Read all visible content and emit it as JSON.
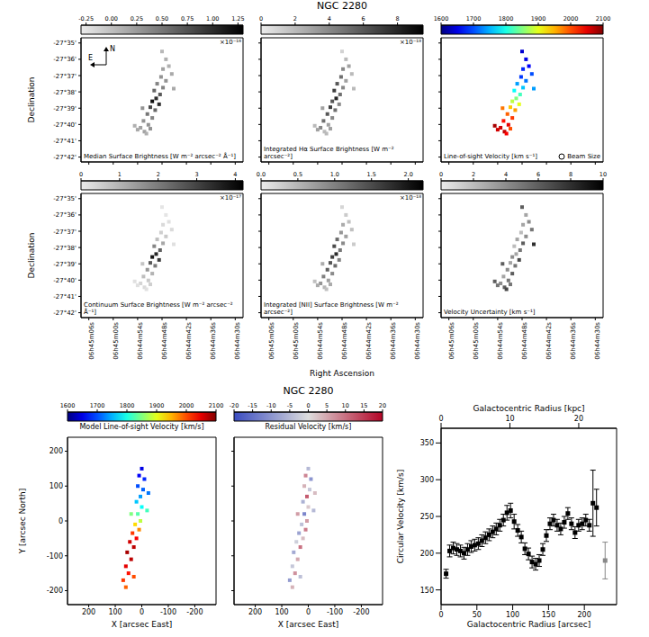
{
  "chart_data": [
    {
      "type": "map_grid",
      "title": "NGC 2280",
      "xlabel": "Right Ascension",
      "ylabel": "Declination",
      "xlim": [
        101.283,
        101.117
      ],
      "xticks": [
        {
          "value": 101.275,
          "label": "06h45m06s"
        },
        {
          "value": 101.25,
          "label": "06h45m00s"
        },
        {
          "value": 101.225,
          "label": "06h44m54s"
        },
        {
          "value": 101.2,
          "label": "06h44m48s"
        },
        {
          "value": 101.175,
          "label": "06h44m42s"
        },
        {
          "value": 101.15,
          "label": "06h44m36s"
        },
        {
          "value": 101.125,
          "label": "06h44m30s"
        }
      ],
      "ylim": [
        -27.705,
        -27.578
      ],
      "yticks": [
        {
          "value": -27.58333,
          "label": "-27°35'"
        },
        {
          "value": -27.6,
          "label": "-27°36'"
        },
        {
          "value": -27.61667,
          "label": "-27°37'"
        },
        {
          "value": -27.63333,
          "label": "-27°38'"
        },
        {
          "value": -27.65,
          "label": "-27°39'"
        },
        {
          "value": -27.66667,
          "label": "-27°40'"
        },
        {
          "value": -27.68333,
          "label": "-27°41'"
        },
        {
          "value": -27.7,
          "label": "-27°42'"
        }
      ],
      "compass": {
        "north": "N",
        "east": "E"
      },
      "beam_label": "Beam Size",
      "x": [
        101.196,
        101.193,
        101.199,
        101.19,
        101.201,
        101.196,
        101.205,
        101.199,
        101.208,
        101.202,
        101.206,
        101.21,
        101.203,
        101.212,
        101.207,
        101.215,
        101.21,
        101.219,
        101.214,
        101.222,
        101.218,
        101.225,
        101.216,
        101.228,
        101.212,
        101.188,
        101.2,
        101.22
      ],
      "y": [
        -27.6,
        -27.607,
        -27.61,
        -27.615,
        -27.618,
        -27.622,
        -27.625,
        -27.629,
        -27.632,
        -27.636,
        -27.64,
        -27.643,
        -27.646,
        -27.649,
        -27.652,
        -27.656,
        -27.66,
        -27.663,
        -27.667,
        -27.67,
        -27.674,
        -27.672,
        -27.676,
        -27.668,
        -27.671,
        -27.63,
        -27.592,
        -27.65
      ],
      "panels": [
        {
          "color": "gray",
          "colorbar": {
            "label": "Median Surface Brightness [W m⁻² arcsec⁻² Å⁻¹]",
            "exponent": "×10⁻¹⁶",
            "lim": [
              -0.3,
              1.3
            ],
            "ticks": [
              -0.25,
              {
                "value": 0,
                "label": "0.00"
              },
              0.25,
              {
                "value": 0.5,
                "label": "0.50"
              },
              0.75,
              {
                "value": 1,
                "label": "1.00"
              },
              1.25
            ]
          },
          "values": [
            0.1,
            0.1,
            0.2,
            0.15,
            0.3,
            0.3,
            0.4,
            0.4,
            0.6,
            0.7,
            1.0,
            1.2,
            1.0,
            0.8,
            0.6,
            0.5,
            0.4,
            0.3,
            0.3,
            0.2,
            0.2,
            0.15,
            0.1,
            0.1,
            0.3,
            0.15,
            0.05,
            0.3
          ]
        },
        {
          "color": "gray",
          "colorbar": {
            "label": "Integrated Hα Surface Brightness [W m⁻² arcsec⁻²]",
            "exponent": "×10⁻¹⁸",
            "lim": [
              0,
              9.5
            ],
            "ticks": [
              0,
              2,
              4,
              6,
              8
            ]
          },
          "values": [
            2,
            3,
            4,
            2,
            5,
            3,
            6,
            4,
            7,
            5,
            8,
            6,
            4,
            7,
            5,
            6,
            4,
            5,
            3,
            4,
            2,
            3,
            2,
            2,
            3,
            2,
            1,
            3
          ]
        },
        {
          "color": "jet",
          "colorbar": {
            "label": "Line-of-sight Velocity [km s⁻¹]",
            "lim": [
              1600,
              2100
            ],
            "ticks": [
              1600,
              1700,
              1800,
              1900,
              2000,
              2100
            ]
          },
          "values": [
            1650,
            1660,
            1680,
            1700,
            1690,
            1720,
            1740,
            1760,
            1790,
            1820,
            1850,
            1880,
            1900,
            1940,
            1960,
            1990,
            2010,
            2030,
            2050,
            2060,
            2070,
            2060,
            2040,
            2080,
            2000,
            1740,
            1640,
            1980
          ]
        },
        {
          "color": "gray",
          "colorbar": {
            "label": "Continuum Surface Brightness [W m⁻² arcsec⁻² Å⁻¹]",
            "exponent": "×10⁻¹⁷",
            "lim": [
              0,
              4.2
            ],
            "ticks": [
              0,
              1,
              2,
              3,
              4
            ]
          },
          "values": [
            0.1,
            0.2,
            0.3,
            0.3,
            0.5,
            0.6,
            0.8,
            1.2,
            1.8,
            2.5,
            3.5,
            3.8,
            3.2,
            2.6,
            2.0,
            1.5,
            1.0,
            0.8,
            0.6,
            0.4,
            0.3,
            0.2,
            0.2,
            0.2,
            0.5,
            0.2,
            0.1,
            0.7
          ]
        },
        {
          "color": "gray",
          "colorbar": {
            "label": "Integrated [NII] Surface Brightness [W m⁻² arcsec⁻²]",
            "exponent": "×10⁻¹⁸",
            "lim": [
              0,
              2.2
            ],
            "ticks": [
              {
                "value": 0,
                "label": "0.0"
              },
              0.5,
              {
                "value": 1,
                "label": "1.0"
              },
              1.5,
              {
                "value": 2,
                "label": "2.0"
              }
            ]
          },
          "values": [
            0.3,
            0.4,
            0.6,
            0.4,
            0.8,
            0.7,
            1.2,
            0.9,
            1.5,
            1.1,
            1.8,
            1.6,
            1.0,
            1.4,
            1.2,
            1.3,
            0.9,
            1.0,
            0.7,
            0.8,
            0.5,
            0.6,
            0.4,
            0.4,
            0.6,
            0.3,
            0.2,
            0.6
          ]
        },
        {
          "color": "gray",
          "colorbar": {
            "label": "Velocity Uncertainty [km s⁻¹]",
            "lim": [
              0,
              10
            ],
            "ticks": [
              0,
              2,
              4,
              6,
              8,
              10
            ]
          },
          "values": [
            3,
            4,
            3,
            5,
            2,
            4,
            3,
            6,
            2,
            5,
            3,
            4,
            7,
            3,
            5,
            4,
            6,
            3,
            5,
            4,
            6,
            5,
            7,
            6,
            5,
            8,
            6,
            6
          ]
        }
      ]
    },
    {
      "type": "map_pair",
      "title": "NGC 2280",
      "xlabel": "X [arcsec East]",
      "ylabel": "Y [arcsec North]",
      "xlim": [
        280,
        -280
      ],
      "xticks": [
        200,
        100,
        0,
        -100,
        -200
      ],
      "ylim": [
        -240,
        240
      ],
      "yticks": [
        -200,
        -100,
        0,
        100,
        200
      ],
      "x": [
        0,
        10,
        -10,
        15,
        -5,
        5,
        20,
        0,
        15,
        5,
        25,
        10,
        35,
        20,
        45,
        30,
        55,
        40,
        60,
        50,
        70,
        60,
        -20,
        40,
        -25,
        30
      ],
      "y": [
        150,
        130,
        120,
        100,
        90,
        70,
        55,
        40,
        20,
        0,
        -10,
        -25,
        -35,
        -50,
        -60,
        -75,
        -90,
        -110,
        -130,
        -150,
        -170,
        -190,
        30,
        20,
        80,
        -160
      ],
      "panels": [
        {
          "color": "jet",
          "colorbar": {
            "label": "Model Line-of-sight Velocity [km/s]",
            "lim": [
              1600,
              2100
            ],
            "ticks": [
              1600,
              1700,
              1800,
              1900,
              2000,
              2100
            ]
          },
          "values": [
            1650,
            1660,
            1680,
            1700,
            1710,
            1740,
            1760,
            1790,
            1830,
            1880,
            1930,
            1970,
            2010,
            2040,
            2060,
            2070,
            2080,
            2070,
            2050,
            2030,
            2010,
            1990,
            1820,
            1850,
            1720,
            2000
          ]
        },
        {
          "color": "coolwarm",
          "colorbar": {
            "label": "Residual Velocity [km/s]",
            "lim": [
              -20,
              20
            ],
            "ticks": [
              -20,
              -15,
              -10,
              -5,
              0,
              5,
              10,
              15,
              20
            ]
          },
          "values": [
            -5,
            8,
            -10,
            4,
            -3,
            12,
            -6,
            2,
            -12,
            6,
            -4,
            9,
            -8,
            3,
            -2,
            10,
            -7,
            5,
            -3,
            7,
            -9,
            4,
            -5,
            6,
            3,
            -4
          ]
        }
      ]
    },
    {
      "type": "scatter",
      "xlabel": "Galactocentric Radius [arcsec]",
      "x2label": "Galactocentric Radius [kpc]",
      "ylabel": "Circular Velocity [km/s]",
      "xlim": [
        0,
        245
      ],
      "xticks": [
        0,
        50,
        100,
        150,
        200
      ],
      "x2lim": [
        0,
        25.5
      ],
      "x2ticks": [
        0,
        10,
        20
      ],
      "ylim": [
        130,
        370
      ],
      "yticks": [
        150,
        200,
        250,
        300,
        350
      ],
      "series": [
        {
          "color": "#000000",
          "marker": "square",
          "x": [
            7,
            12,
            17,
            22,
            27,
            32,
            37,
            42,
            47,
            52,
            57,
            62,
            67,
            72,
            77,
            82,
            87,
            92,
            97,
            102,
            107,
            112,
            117,
            122,
            127,
            132,
            137,
            142,
            147,
            152,
            157,
            162,
            167,
            172,
            177,
            182,
            187,
            192,
            197,
            202,
            207,
            212,
            217
          ],
          "values": [
            172,
            203,
            207,
            205,
            203,
            200,
            205,
            209,
            211,
            213,
            217,
            221,
            225,
            229,
            233,
            238,
            245,
            255,
            258,
            243,
            231,
            222,
            206,
            199,
            188,
            185,
            190,
            205,
            224,
            240,
            245,
            238,
            233,
            242,
            254,
            240,
            228,
            238,
            240,
            245,
            238,
            268,
            262
          ],
          "errors": [
            6,
            8,
            8,
            8,
            8,
            8,
            8,
            8,
            8,
            8,
            8,
            8,
            8,
            8,
            8,
            8,
            8,
            10,
            10,
            10,
            8,
            8,
            8,
            8,
            8,
            8,
            8,
            8,
            8,
            8,
            8,
            8,
            8,
            8,
            8,
            8,
            8,
            8,
            8,
            8,
            8,
            45,
            25
          ]
        },
        {
          "color": "#888888",
          "marker": "square",
          "x": [
            229
          ],
          "values": [
            190
          ],
          "errors": [
            25
          ]
        }
      ]
    }
  ]
}
